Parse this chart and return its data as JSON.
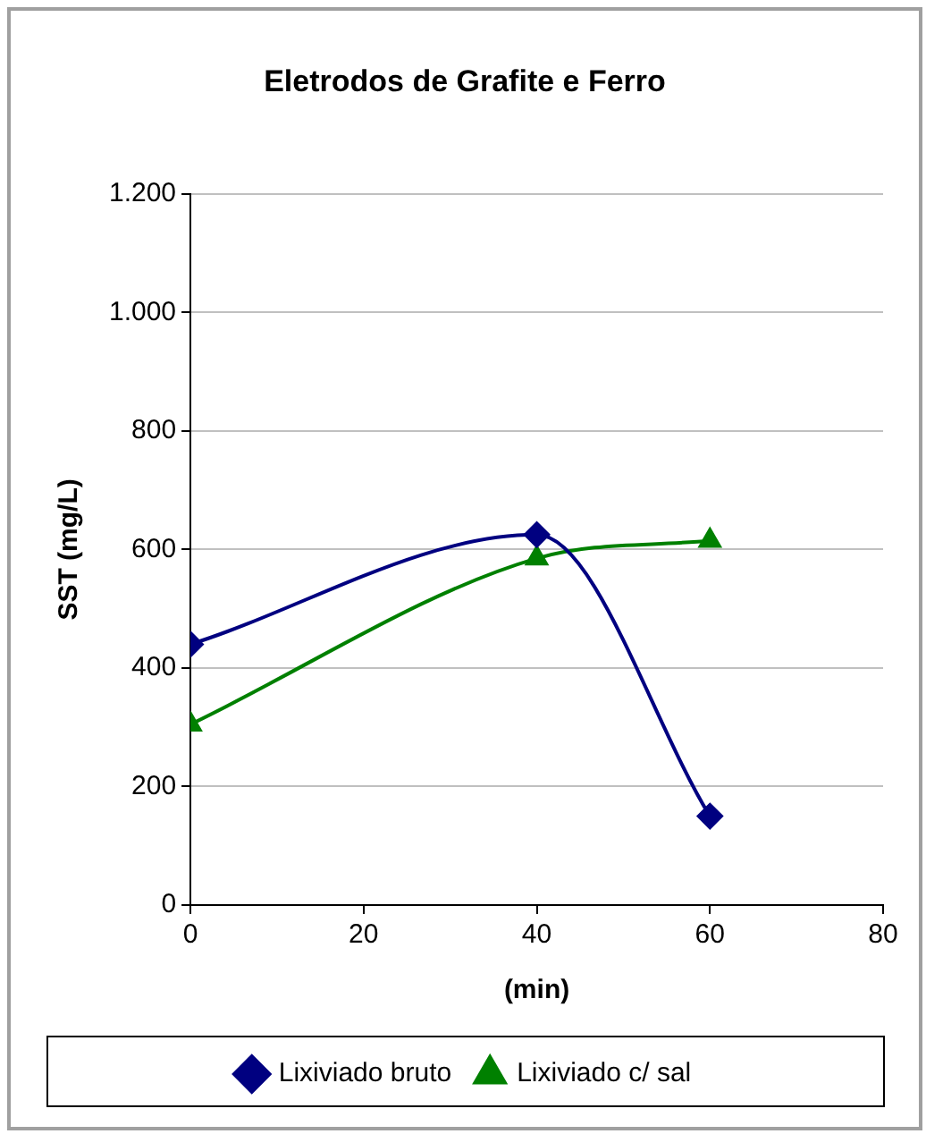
{
  "chart_data": {
    "type": "line",
    "title": "Eletrodos de Grafite e Ferro",
    "xlabel": "(min)",
    "ylabel": "SST (mg/L)",
    "xlim": [
      0,
      80
    ],
    "xticks": [
      0,
      20,
      40,
      60,
      80
    ],
    "ylim": [
      0,
      1200
    ],
    "yticks": [
      0,
      200,
      400,
      600,
      800,
      {
        "value": 1000,
        "label": "1.000"
      },
      {
        "value": 1200,
        "label": "1.200"
      }
    ],
    "grid": "y",
    "legend": "bottom",
    "series": [
      {
        "name": "Lixiviado bruto",
        "color": "#000080",
        "marker": "diamond",
        "x": [
          0,
          40,
          60
        ],
        "values": [
          440,
          625,
          150
        ]
      },
      {
        "name": "Lixiviado c/ sal",
        "color": "#008000",
        "marker": "triangle",
        "x": [
          0,
          40,
          60
        ],
        "values": [
          305,
          585,
          615
        ]
      }
    ]
  }
}
